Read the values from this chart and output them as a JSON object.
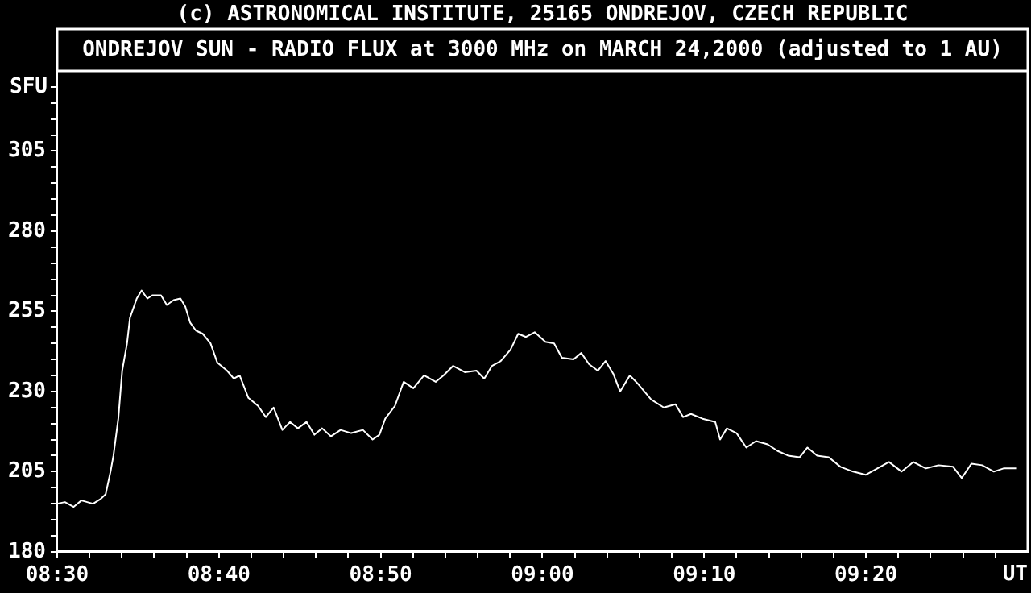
{
  "chart_data": {
    "type": "line",
    "title": "(c) ASTRONOMICAL INSTITUTE, 25165 ONDREJOV, CZECH REPUBLIC",
    "subtitle": "ONDREJOV SUN - RADIO FLUX at 3000 MHz on MARCH 24,2000 (adjusted to 1 AU)",
    "ylabel": "SFU",
    "xlabel": "UT",
    "xlim": [
      8.5,
      9.5
    ],
    "ylim": [
      180,
      330
    ],
    "grid": false,
    "legend": false,
    "xticks": [
      {
        "value": 8.5,
        "label": "08:30"
      },
      {
        "value": 8.5333,
        "label": null
      },
      {
        "value": 8.5667,
        "label": null
      },
      {
        "value": 8.6,
        "label": null
      },
      {
        "value": 8.6333,
        "label": null
      },
      {
        "value": 8.6667,
        "label": "08:40"
      },
      {
        "value": 8.7,
        "label": null
      },
      {
        "value": 8.7333,
        "label": null
      },
      {
        "value": 8.7667,
        "label": null
      },
      {
        "value": 8.8,
        "label": null
      },
      {
        "value": 8.8333,
        "label": "08:50"
      },
      {
        "value": 8.8667,
        "label": null
      },
      {
        "value": 8.9,
        "label": null
      },
      {
        "value": 8.9333,
        "label": null
      },
      {
        "value": 8.9667,
        "label": null
      },
      {
        "value": 9.0,
        "label": "09:00"
      },
      {
        "value": 9.0333,
        "label": null
      },
      {
        "value": 9.0667,
        "label": null
      },
      {
        "value": 9.1,
        "label": null
      },
      {
        "value": 9.1333,
        "label": null
      },
      {
        "value": 9.1667,
        "label": "09:10"
      },
      {
        "value": 9.2,
        "label": null
      },
      {
        "value": 9.2333,
        "label": null
      },
      {
        "value": 9.2667,
        "label": null
      },
      {
        "value": 9.3,
        "label": null
      },
      {
        "value": 9.3333,
        "label": "09:20"
      },
      {
        "value": 9.3667,
        "label": null
      },
      {
        "value": 9.4,
        "label": null
      },
      {
        "value": 9.4333,
        "label": null
      },
      {
        "value": 9.4667,
        "label": null
      }
    ],
    "yticks": [
      180,
      {
        "value": 185,
        "label": null
      },
      {
        "value": 190,
        "label": null
      },
      {
        "value": 195,
        "label": null
      },
      {
        "value": 200,
        "label": null
      },
      205,
      {
        "value": 210,
        "label": null
      },
      {
        "value": 215,
        "label": null
      },
      {
        "value": 220,
        "label": null
      },
      {
        "value": 225,
        "label": null
      },
      230,
      {
        "value": 235,
        "label": null
      },
      {
        "value": 240,
        "label": null
      },
      {
        "value": 245,
        "label": null
      },
      {
        "value": 250,
        "label": null
      },
      255,
      {
        "value": 260,
        "label": null
      },
      {
        "value": 265,
        "label": null
      },
      {
        "value": 270,
        "label": null
      },
      {
        "value": 275,
        "label": null
      },
      280,
      {
        "value": 285,
        "label": null
      },
      {
        "value": 290,
        "label": null
      },
      {
        "value": 295,
        "label": null
      },
      {
        "value": 300,
        "label": null
      },
      305,
      {
        "value": 310,
        "label": null
      },
      {
        "value": 315,
        "label": null
      },
      {
        "value": 320,
        "label": null
      },
      {
        "value": 325,
        "label": null
      }
    ],
    "series": [
      {
        "color": "#ffffff",
        "x": [
          8.5,
          8.508,
          8.517,
          8.525,
          8.537,
          8.545,
          8.55,
          8.555,
          8.558,
          8.563,
          8.567,
          8.572,
          8.575,
          8.582,
          8.587,
          8.593,
          8.598,
          8.607,
          8.613,
          8.62,
          8.627,
          8.632,
          8.637,
          8.643,
          8.65,
          8.658,
          8.665,
          8.675,
          8.682,
          8.688,
          8.697,
          8.707,
          8.715,
          8.723,
          8.732,
          8.74,
          8.748,
          8.757,
          8.765,
          8.773,
          8.782,
          8.792,
          8.803,
          8.815,
          8.825,
          8.832,
          8.838,
          8.848,
          8.857,
          8.867,
          8.878,
          8.89,
          8.898,
          8.908,
          8.92,
          8.932,
          8.94,
          8.948,
          8.957,
          8.967,
          8.975,
          8.983,
          8.992,
          9.003,
          9.012,
          9.02,
          9.032,
          9.04,
          9.048,
          9.057,
          9.065,
          9.073,
          9.08,
          9.09,
          9.098,
          9.112,
          9.125,
          9.137,
          9.145,
          9.153,
          9.165,
          9.178,
          9.183,
          9.19,
          9.2,
          9.21,
          9.22,
          9.232,
          9.242,
          9.253,
          9.265,
          9.273,
          9.283,
          9.295,
          9.307,
          9.32,
          9.333,
          9.342,
          9.357,
          9.37,
          9.382,
          9.395,
          9.408,
          9.423,
          9.432,
          9.442,
          9.453,
          9.465,
          9.475,
          9.488
        ],
        "values": [
          195,
          195.5,
          194,
          196,
          195,
          196.5,
          198,
          205,
          210,
          221.5,
          236.5,
          245,
          253,
          259,
          261.5,
          259,
          260,
          260,
          257,
          258.5,
          259,
          256.5,
          251.5,
          249,
          248,
          245,
          239,
          236.5,
          234,
          235,
          228,
          225.5,
          222,
          225,
          218,
          220.5,
          218.5,
          220.5,
          216.5,
          218.5,
          216,
          218,
          217,
          218,
          215,
          216.5,
          221.5,
          225.5,
          233,
          231,
          235,
          233,
          235,
          238,
          236,
          236.5,
          234,
          238,
          239.5,
          243,
          248,
          247,
          248.5,
          245.5,
          245,
          240.5,
          240,
          242,
          238.5,
          236.5,
          239.5,
          235.5,
          230,
          235,
          232.5,
          227.5,
          225,
          226,
          222,
          223,
          221.5,
          220.5,
          215,
          218.5,
          217,
          212.5,
          214.5,
          213.5,
          211.5,
          210,
          209.5,
          212.5,
          210,
          209.5,
          206.5,
          205,
          204,
          205.5,
          208,
          205,
          208,
          206,
          207,
          206.5,
          203,
          207.5,
          207,
          205,
          206,
          206
        ]
      }
    ]
  }
}
